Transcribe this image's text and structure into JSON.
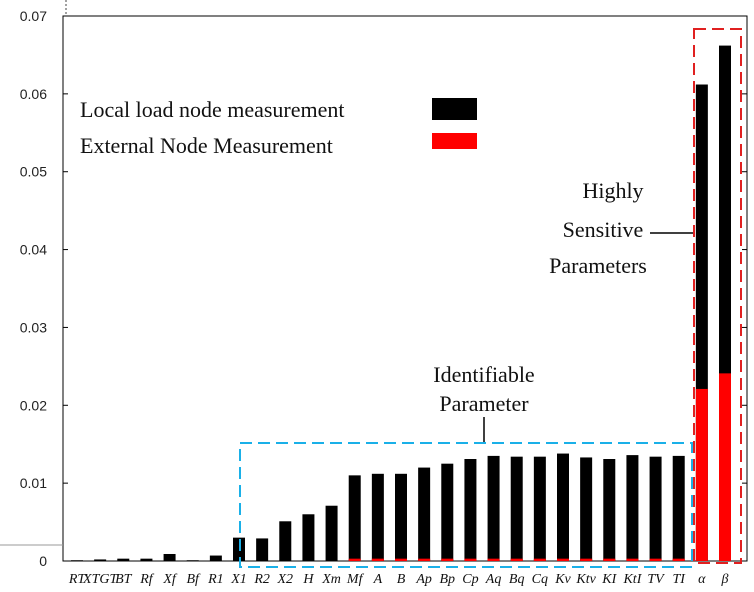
{
  "chart_data": {
    "type": "bar",
    "ylim": [
      0,
      0.07
    ],
    "yticks": [
      "0",
      "0.01",
      "0.02",
      "0.03",
      "0.04",
      "0.05",
      "0.06",
      "0.07"
    ],
    "yticks_values": [
      0,
      0.01,
      0.02,
      0.03,
      0.04,
      0.05,
      0.06,
      0.07
    ],
    "categories": [
      "RT",
      "XTGT",
      "BT",
      "Rf",
      "Xf",
      "Bf",
      "R1",
      "X1",
      "R2",
      "X2",
      "H",
      "Xm",
      "Mf",
      "A",
      "B",
      "Ap",
      "Bp",
      "Cp",
      "Aq",
      "Bq",
      "Cq",
      "Kv",
      "Ktv",
      "KI",
      "KtI",
      "TV",
      "TI",
      "α",
      "β"
    ],
    "series": [
      {
        "name": "Local load node measurement",
        "color": "#000000",
        "values": [
          0.0001,
          0.0002,
          0.0003,
          0.0003,
          0.0009,
          0.0001,
          0.0007,
          0.003,
          0.0029,
          0.0051,
          0.006,
          0.0071,
          0.011,
          0.0112,
          0.0112,
          0.012,
          0.0125,
          0.0131,
          0.0135,
          0.0134,
          0.0134,
          0.0138,
          0.0133,
          0.0131,
          0.0136,
          0.0134,
          0.0135,
          0.0612,
          0.0662
        ]
      },
      {
        "name": "External Node Measurement",
        "color": "#ff0000",
        "values": [
          0,
          0,
          0,
          0,
          0,
          0,
          0,
          0,
          0,
          0,
          0,
          0,
          0.0003,
          0.0003,
          0.0003,
          0.0003,
          0.0003,
          0.0003,
          0.0003,
          0.0003,
          0.0003,
          0.0003,
          0.0003,
          0.0003,
          0.0003,
          0.0003,
          0.0003,
          0.0221,
          0.0241
        ]
      }
    ],
    "legend": {
      "placement": "top-left",
      "items": [
        "Local load node measurement",
        "External Node Measurement"
      ]
    },
    "annotations": {
      "identifiable": [
        "Identifiable",
        "Parameter"
      ],
      "sensitive": [
        "Highly",
        "Sensitive",
        "Parameters"
      ],
      "identifiable_box_color": "#1ab0e8",
      "sensitive_box_color": "#e02020"
    }
  }
}
